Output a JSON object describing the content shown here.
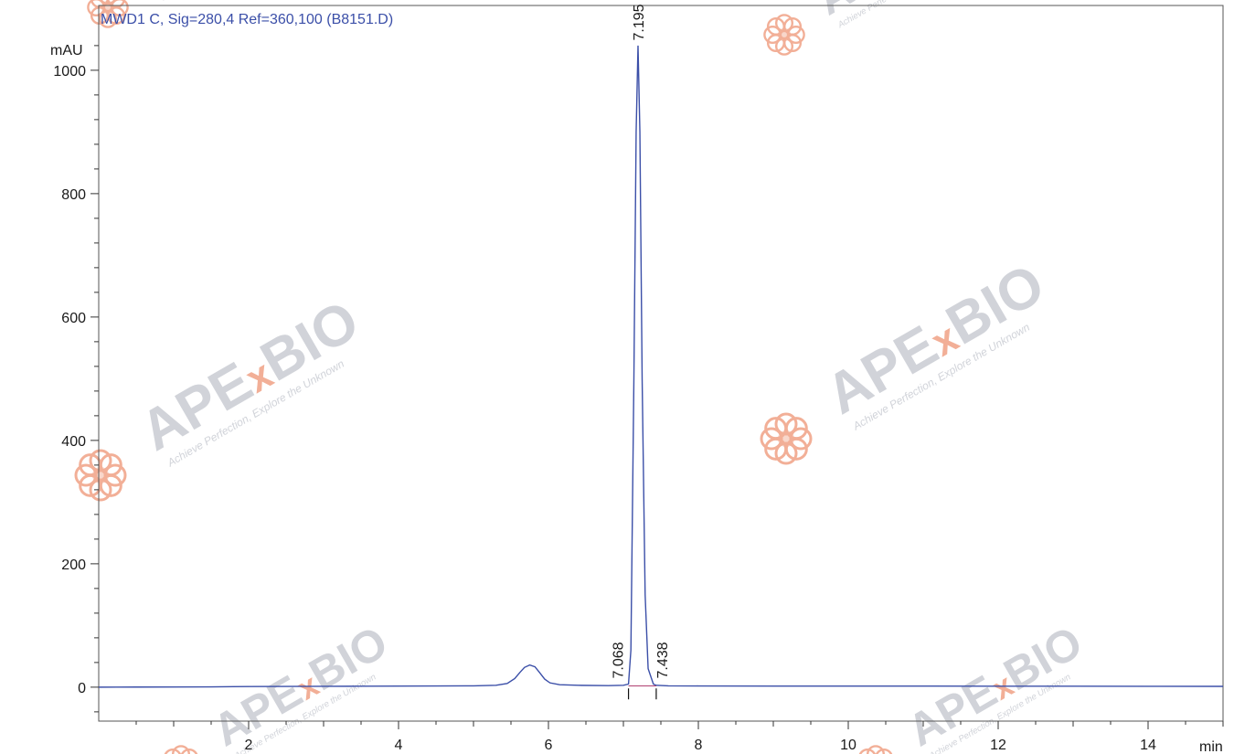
{
  "chart_data": {
    "type": "line",
    "title": "MWD1 C, Sig=280,4 Ref=360,100 (B8151.D)",
    "ylabel": "mAU",
    "xlabel": "min",
    "xlim": [
      0,
      15
    ],
    "ylim": [
      -55,
      1105
    ],
    "x_ticks": [
      2,
      4,
      6,
      8,
      10,
      12,
      14
    ],
    "y_ticks": [
      0,
      200,
      400,
      600,
      800,
      1000
    ],
    "grid": false,
    "series": [
      {
        "color": "#3b4fa8",
        "points": [
          [
            0.0,
            0.0
          ],
          [
            0.5,
            0.2
          ],
          [
            1.0,
            0.3
          ],
          [
            1.5,
            0.5
          ],
          [
            2.0,
            1.0
          ],
          [
            2.5,
            1.2
          ],
          [
            3.0,
            1.4
          ],
          [
            3.5,
            1.5
          ],
          [
            4.0,
            1.7
          ],
          [
            4.5,
            1.9
          ],
          [
            5.0,
            2.2
          ],
          [
            5.3,
            3.0
          ],
          [
            5.45,
            6.0
          ],
          [
            5.55,
            14.0
          ],
          [
            5.62,
            24.0
          ],
          [
            5.68,
            32.0
          ],
          [
            5.75,
            36.0
          ],
          [
            5.82,
            33.0
          ],
          [
            5.88,
            24.0
          ],
          [
            5.95,
            13.0
          ],
          [
            6.02,
            7.0
          ],
          [
            6.15,
            4.0
          ],
          [
            6.4,
            3.0
          ],
          [
            6.8,
            2.5
          ],
          [
            7.0,
            3.0
          ],
          [
            7.068,
            5.0
          ],
          [
            7.1,
            60.0
          ],
          [
            7.14,
            500.0
          ],
          [
            7.17,
            900.0
          ],
          [
            7.195,
            1040.0
          ],
          [
            7.22,
            900.0
          ],
          [
            7.25,
            500.0
          ],
          [
            7.29,
            150.0
          ],
          [
            7.33,
            30.0
          ],
          [
            7.4,
            5.0
          ],
          [
            7.438,
            3.0
          ],
          [
            7.6,
            2.2
          ],
          [
            8.0,
            2.0
          ],
          [
            9.0,
            1.8
          ],
          [
            10.0,
            1.8
          ],
          [
            11.0,
            1.7
          ],
          [
            12.0,
            1.6
          ],
          [
            13.0,
            1.5
          ],
          [
            14.0,
            1.4
          ],
          [
            15.0,
            1.3
          ]
        ]
      }
    ],
    "peak_labels": [
      {
        "x": 7.068,
        "text": "7.068"
      },
      {
        "x": 7.195,
        "text": "7.195"
      },
      {
        "x": 7.438,
        "text": "7.438"
      }
    ],
    "baseline_marks": [
      7.068,
      7.438
    ]
  },
  "watermark": {
    "brand_a": "APE",
    "brand_x": "x",
    "brand_b": "BIO",
    "tagline": "Achieve Perfection, Explore the Unknown",
    "brand_color": "#c9ccd3",
    "accent_color": "#f0a286"
  }
}
